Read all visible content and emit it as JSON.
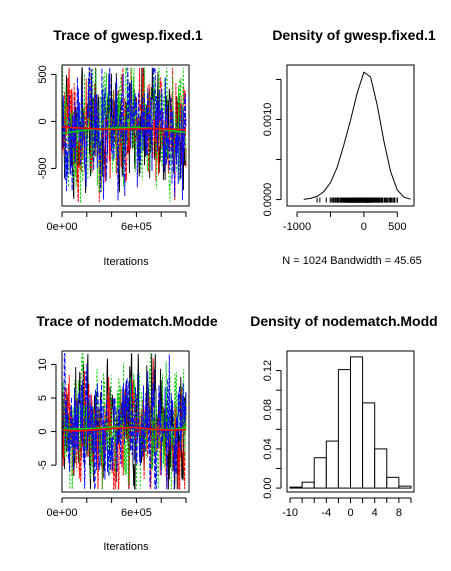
{
  "chart_data": [
    {
      "type": "line",
      "title": "Trace of gwesp.fixed.1",
      "xlabel": "Iterations",
      "ylabel": "",
      "xlim": [
        0,
        1024000
      ],
      "ylim": [
        -900,
        600
      ],
      "x_tick_labels": [
        "0e+00",
        "6e+05"
      ],
      "x_tick_values": [
        0,
        600000
      ],
      "y_tick_labels": [
        "500",
        "0",
        "-500"
      ],
      "y_tick_values": [
        500,
        0,
        -500
      ],
      "minor_x_ticks": [
        0,
        200000,
        400000,
        600000,
        800000,
        1000000
      ],
      "series": [
        {
          "color": "#000000",
          "center": -80,
          "spread": 380
        },
        {
          "color": "#ff0000",
          "center": -90,
          "spread": 360
        },
        {
          "color": "#00cd00",
          "center": -70,
          "spread": 380
        },
        {
          "color": "#0000ff",
          "center": -60,
          "spread": 360
        }
      ],
      "smooth_lines": [
        {
          "color": "#00cd00",
          "y": [
            -130,
            -100,
            -80,
            -70,
            -65,
            -70,
            -90,
            -120
          ]
        },
        {
          "color": "#ff0000",
          "y": [
            -60,
            -70,
            -80,
            -85,
            -80,
            -75,
            -80,
            -90
          ]
        }
      ],
      "grid": false
    },
    {
      "type": "line",
      "title": "Density of gwesp.fixed.1",
      "xlabel": "N = 1024   Bandwidth = 45.65",
      "ylabel": "",
      "xlim": [
        -1150,
        750
      ],
      "ylim": [
        -8e-05,
        0.00168
      ],
      "x": [
        -900,
        -800,
        -700,
        -600,
        -500,
        -400,
        -300,
        -200,
        -100,
        0,
        100,
        200,
        300,
        400,
        500,
        600,
        700
      ],
      "y": [
        3e-06,
        1.5e-05,
        4e-05,
        0.0001,
        0.00021,
        0.0004,
        0.00068,
        0.00099,
        0.00133,
        0.00159,
        0.00153,
        0.00118,
        0.00073,
        0.00035,
        0.00012,
        3e-05,
        5e-06
      ],
      "rug_range": [
        -700,
        500
      ],
      "x_tick_labels": [
        "-1000",
        "0",
        "500"
      ],
      "x_tick_values": [
        -1000,
        0,
        500
      ],
      "minor_x_ticks": [
        -1000,
        -500,
        0,
        500
      ],
      "y_tick_labels": [
        "0.0000",
        "0.0010"
      ],
      "y_tick_values": [
        0,
        0.001
      ],
      "minor_y_ticks": [
        0,
        0.0005,
        0.001,
        0.0015
      ],
      "grid": false
    },
    {
      "type": "line",
      "title": "Trace of nodematch.Modde",
      "xlabel": "Iterations",
      "ylabel": "",
      "xlim": [
        0,
        1024000
      ],
      "ylim": [
        -9,
        12
      ],
      "x_tick_labels": [
        "0e+00",
        "6e+05"
      ],
      "x_tick_values": [
        0,
        600000
      ],
      "y_tick_labels": [
        "10",
        "5",
        "0",
        "-5"
      ],
      "y_tick_values": [
        10,
        5,
        0,
        -5
      ],
      "minor_x_ticks": [
        0,
        200000,
        400000,
        600000,
        800000,
        1000000
      ],
      "series": [
        {
          "color": "#000000",
          "center": 0.5,
          "spread": 5.5
        },
        {
          "color": "#ff0000",
          "center": 0.3,
          "spread": 5.0
        },
        {
          "color": "#00cd00",
          "center": 0.6,
          "spread": 5.5
        },
        {
          "color": "#0000ff",
          "center": 0.4,
          "spread": 5.0
        }
      ],
      "smooth_lines": [
        {
          "color": "#00cd00",
          "y": [
            0.3,
            0.4,
            0.5,
            0.7,
            0.6,
            0.4,
            0.3,
            0.5
          ]
        },
        {
          "color": "#ff0000",
          "y": [
            0.2,
            0.1,
            0.3,
            0.5,
            0.6,
            0.4,
            0.2,
            0.3
          ]
        }
      ],
      "grid": false
    },
    {
      "type": "bar",
      "title": "Density of nodematch.Modd",
      "xlabel": "",
      "ylabel": "",
      "xlim": [
        -10.5,
        10.5
      ],
      "ylim": [
        -0.004,
        0.14
      ],
      "bins": [
        {
          "from": -10,
          "to": -8,
          "value": 0.001
        },
        {
          "from": -8,
          "to": -6,
          "value": 0.006
        },
        {
          "from": -6,
          "to": -4,
          "value": 0.031
        },
        {
          "from": -4,
          "to": -2,
          "value": 0.048
        },
        {
          "from": -2,
          "to": 0,
          "value": 0.121
        },
        {
          "from": 0,
          "to": 2,
          "value": 0.134
        },
        {
          "from": 2,
          "to": 4,
          "value": 0.087
        },
        {
          "from": 4,
          "to": 6,
          "value": 0.04
        },
        {
          "from": 6,
          "to": 8,
          "value": 0.011
        },
        {
          "from": 8,
          "to": 10,
          "value": 0.002
        }
      ],
      "x_tick_labels": [
        "-10",
        "-4",
        "0",
        "4",
        "8"
      ],
      "x_tick_values": [
        -10,
        -4,
        0,
        4,
        8
      ],
      "minor_x_ticks": [
        -10,
        -8,
        -6,
        -4,
        -2,
        0,
        2,
        4,
        6,
        8,
        10
      ],
      "y_tick_labels": [
        "0.00",
        "0.04",
        "0.08",
        "0.12"
      ],
      "y_tick_values": [
        0,
        0.04,
        0.08,
        0.12
      ],
      "minor_y_ticks": [
        0,
        0.02,
        0.04,
        0.06,
        0.08,
        0.1,
        0.12
      ],
      "grid": false
    }
  ]
}
